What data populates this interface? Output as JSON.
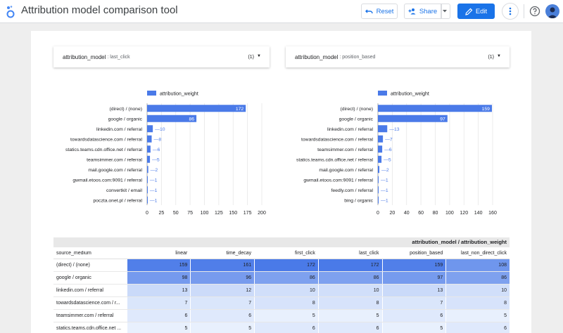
{
  "header": {
    "title": "Attribution model comparison tool",
    "reset_label": "Reset",
    "share_label": "Share",
    "edit_label": "Edit"
  },
  "colors": {
    "accent": "#1a73e8",
    "bar": "#4a7ae8"
  },
  "filters": [
    {
      "name": "attribution_model",
      "value": ": last_click",
      "count": "(1)"
    },
    {
      "name": "attribution_model",
      "value": ": position_based",
      "count": "(1)"
    }
  ],
  "chart_data": [
    {
      "type": "bar",
      "orientation": "horizontal",
      "legend": "attribution_weight",
      "categories": [
        "(direct) / (none)",
        "google / organic",
        "linkedin.com / referral",
        "towardsdatascience.com / referral",
        "statics.teams.cdn.office.net / referral",
        "teamsimmer.com / referral",
        "mail.google.com / referral",
        "gwmail.etoos.com:9091 / referral",
        "convertkit / email",
        "poczta.onet.pl / referral"
      ],
      "values": [
        172,
        86,
        10,
        8,
        6,
        5,
        2,
        1,
        1,
        1
      ],
      "xticks": [
        0,
        25,
        50,
        75,
        100,
        125,
        150,
        175,
        200
      ],
      "xlim": [
        0,
        200
      ]
    },
    {
      "type": "bar",
      "orientation": "horizontal",
      "legend": "attribution_weight",
      "categories": [
        "(direct) / (none)",
        "google / organic",
        "linkedin.com / referral",
        "towardsdatascience.com / referral",
        "teamsimmer.com / referral",
        "statics.teams.cdn.office.net / referral",
        "mail.google.com / referral",
        "gwmail.etoos.com:9091 / referral",
        "feedly.com / referral",
        "bing / organic"
      ],
      "values": [
        159,
        97,
        13,
        7,
        6,
        5,
        2,
        1,
        1,
        1
      ],
      "xticks": [
        0,
        20,
        40,
        60,
        80,
        100,
        120,
        140,
        160
      ],
      "xlim": [
        0,
        160
      ]
    }
  ],
  "table": {
    "super_header": "attribution_model / attribution_weight",
    "columns": [
      "source_medium",
      "linear",
      "time_decay",
      "first_click",
      "last_click",
      "position_based",
      "last_non_direct_click"
    ],
    "rows": [
      [
        "(direct) / (none)",
        "159",
        "161",
        "172",
        "172",
        "159",
        "108"
      ],
      [
        "google / organic",
        "98",
        "96",
        "86",
        "86",
        "97",
        "86"
      ],
      [
        "linkedin.com / referral",
        "13",
        "12",
        "10",
        "10",
        "13",
        "10"
      ],
      [
        "towardsdatascience.com / r...",
        "7",
        "7",
        "8",
        "8",
        "7",
        "8"
      ],
      [
        "teamsimmer.com / referral",
        "6",
        "6",
        "5",
        "5",
        "6",
        "5"
      ],
      [
        "statics.teams.cdn.office.net ...",
        "5",
        "5",
        "6",
        "6",
        "5",
        "6"
      ]
    ]
  }
}
